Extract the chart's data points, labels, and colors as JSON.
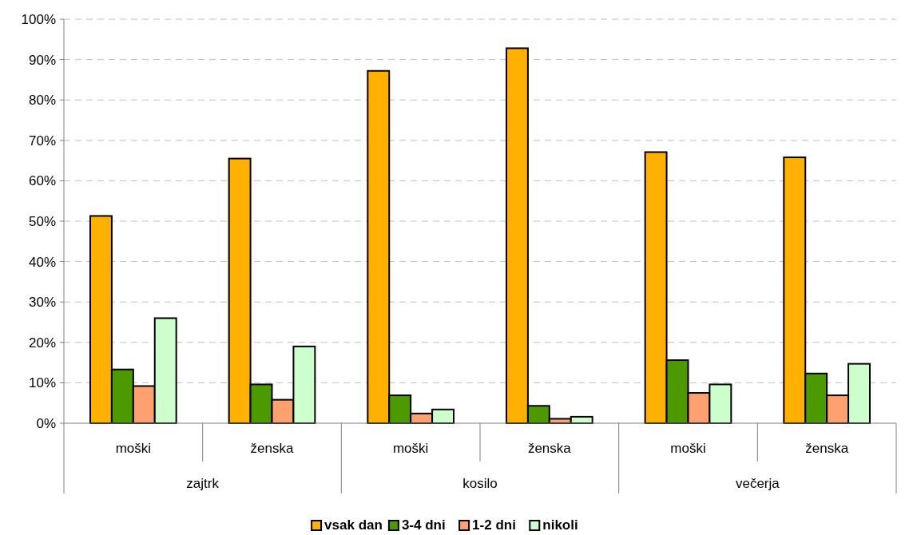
{
  "chart_data": {
    "type": "bar",
    "categories": [
      "moški",
      "ženska",
      "moški",
      "ženska",
      "moški",
      "ženska"
    ],
    "annotations": [
      "zajtrk",
      "kosilo",
      "večerja"
    ],
    "series": [
      {
        "name": "vsak dan",
        "color": "#ffb000",
        "values": [
          51.3,
          65.5,
          87.2,
          92.8,
          67.1,
          65.8
        ]
      },
      {
        "name": "3-4 dni",
        "color": "#4c9a00",
        "values": [
          13.3,
          9.6,
          6.9,
          4.3,
          15.6,
          12.3
        ]
      },
      {
        "name": "1-2 dni",
        "color": "#ffa070",
        "values": [
          9.2,
          5.8,
          2.4,
          1.1,
          7.5,
          6.9
        ]
      },
      {
        "name": "nikoli",
        "color": "#ccffcc",
        "values": [
          26.0,
          19.0,
          3.4,
          1.6,
          9.6,
          14.7
        ]
      }
    ],
    "ylim": [
      0,
      100
    ],
    "yticks": [
      {
        "value": 0,
        "label": "0%"
      },
      {
        "value": 10,
        "label": "10%"
      },
      {
        "value": 20,
        "label": "20%"
      },
      {
        "value": 30,
        "label": "30%"
      },
      {
        "value": 40,
        "label": "40%"
      },
      {
        "value": 50,
        "label": "50%"
      },
      {
        "value": 60,
        "label": "60%"
      },
      {
        "value": 70,
        "label": "70%"
      },
      {
        "value": 80,
        "label": "80%"
      },
      {
        "value": 90,
        "label": "90%"
      },
      {
        "value": 100,
        "label": "100%"
      }
    ],
    "grid": "y",
    "legend": "bottom"
  }
}
